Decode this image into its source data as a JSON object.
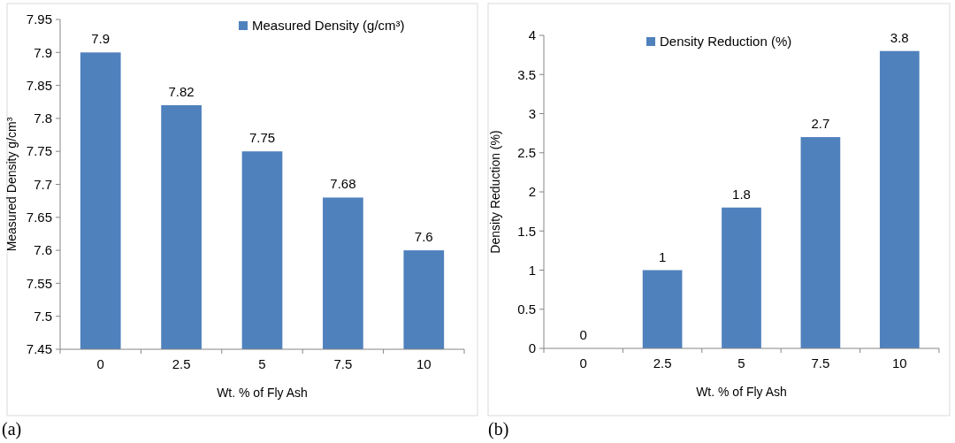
{
  "chart_data": [
    {
      "type": "bar",
      "categories": [
        "0",
        "2.5",
        "5",
        "7.5",
        "10"
      ],
      "xlabel": "Wt. % of Fly Ash",
      "ylabel": "Measured Density g/cm³",
      "ylim": [
        7.45,
        7.95
      ],
      "yticks": [
        7.45,
        7.5,
        7.55,
        7.6,
        7.65,
        7.7,
        7.75,
        7.8,
        7.85,
        7.9,
        7.95
      ],
      "series": [
        {
          "name": "Measured Density (g/cm³)",
          "color": "#4f81bd",
          "values": [
            7.9,
            7.82,
            7.75,
            7.68,
            7.6
          ]
        }
      ],
      "data_labels": true,
      "legend": "top right",
      "grid": false,
      "annotations": [
        "(a)"
      ]
    },
    {
      "type": "bar",
      "categories": [
        "0",
        "2.5",
        "5",
        "7.5",
        "10"
      ],
      "xlabel": "Wt. % of Fly Ash",
      "ylabel": "Density Reduction (%)",
      "ylim": [
        0,
        4
      ],
      "yticks": [
        0,
        0.5,
        1,
        1.5,
        2,
        2.5,
        3,
        3.5,
        4
      ],
      "series": [
        {
          "name": "Density Reduction (%)",
          "color": "#4f81bd",
          "values": [
            0,
            1,
            1.8,
            2.7,
            3.8
          ]
        }
      ],
      "data_labels": true,
      "legend": "top",
      "grid": false,
      "annotations": [
        "(b)"
      ]
    }
  ]
}
